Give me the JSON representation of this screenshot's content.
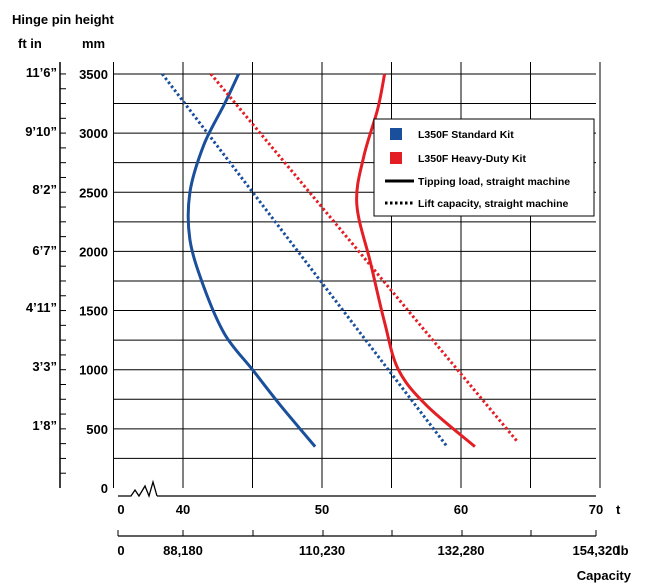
{
  "chart_data": {
    "type": "line",
    "title": "Hinge pin height",
    "y_unit_left": "ft in",
    "y_unit_right": "mm",
    "xlabel": "Capacity",
    "x_unit_primary": "t",
    "x_unit_secondary": "lb",
    "x_ticks_t": [
      "0",
      "40",
      "50",
      "60",
      "70"
    ],
    "x_ticks_lb": [
      "0",
      "88,180",
      "110,230",
      "132,280",
      "154,320"
    ],
    "y_ticks_mm": [
      "0",
      "500",
      "1000",
      "1500",
      "2000",
      "2500",
      "3000",
      "3500"
    ],
    "y_ticks_ftin": [
      "1’8”",
      "3’3”",
      "4’11”",
      "6’7”",
      "8’2”",
      "9’10”",
      "11’6”"
    ],
    "xlim": [
      35,
      70
    ],
    "ylim": [
      0,
      3500
    ],
    "x_axis_break": true,
    "grid": true,
    "legend_position": "top-right",
    "legend": [
      {
        "label": "L350F Standard Kit",
        "kind": "swatch",
        "color": "#1a4f9c"
      },
      {
        "label": "L350F Heavy-Duty Kit",
        "kind": "swatch",
        "color": "#e31e24"
      },
      {
        "label": "Tipping load, straight machine",
        "kind": "solid"
      },
      {
        "label": "Lift capacity, straight machine",
        "kind": "dotted"
      }
    ],
    "series": [
      {
        "kit": "L350F Standard Kit",
        "type": "Tipping load, straight machine",
        "color": "#1a4f9c",
        "style": "solid",
        "points": [
          [
            49.5,
            350
          ],
          [
            47,
            700
          ],
          [
            45,
            1000
          ],
          [
            43,
            1300
          ],
          [
            41.5,
            1700
          ],
          [
            40.5,
            2100
          ],
          [
            40.5,
            2500
          ],
          [
            41.5,
            2900
          ],
          [
            43,
            3250
          ],
          [
            44,
            3500
          ]
        ]
      },
      {
        "kit": "L350F Standard Kit",
        "type": "Lift capacity, straight machine",
        "color": "#1a4f9c",
        "style": "dotted",
        "points": [
          [
            38.5,
            3500
          ],
          [
            59,
            350
          ]
        ]
      },
      {
        "kit": "L350F Heavy-Duty Kit",
        "type": "Tipping load, straight machine",
        "color": "#e31e24",
        "style": "solid",
        "points": [
          [
            61,
            350
          ],
          [
            57.5,
            700
          ],
          [
            55.5,
            1000
          ],
          [
            54.5,
            1400
          ],
          [
            53.5,
            1900
          ],
          [
            52.5,
            2400
          ],
          [
            53,
            2800
          ],
          [
            54,
            3200
          ],
          [
            54.5,
            3500
          ]
        ]
      },
      {
        "kit": "L350F Heavy-Duty Kit",
        "type": "Lift capacity, straight machine",
        "color": "#e31e24",
        "style": "dotted",
        "points": [
          [
            42,
            3500
          ],
          [
            64,
            400
          ]
        ]
      }
    ]
  }
}
